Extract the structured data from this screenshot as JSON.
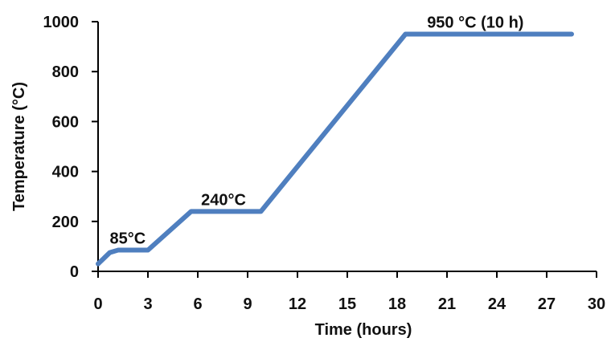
{
  "chart_data": {
    "type": "line",
    "xlabel": "Time (hours)",
    "ylabel": "Temperature (°C)",
    "xlim": [
      0,
      30
    ],
    "ylim": [
      0,
      1000
    ],
    "x_ticks": [
      0,
      3,
      6,
      9,
      12,
      15,
      18,
      21,
      24,
      27,
      30
    ],
    "y_ticks": [
      0,
      200,
      400,
      600,
      800,
      1000
    ],
    "x_tick_labels": [
      "0",
      "3",
      "6",
      "9",
      "12",
      "15",
      "18",
      "21",
      "24",
      "27",
      "30"
    ],
    "y_tick_labels": [
      "0",
      "200",
      "400",
      "600",
      "800",
      "1000"
    ],
    "grid": false,
    "legend": false,
    "series": [
      {
        "color": "#4f7fbf",
        "x": [
          0,
          0.7,
          1.2,
          2.0,
          3.0,
          5.6,
          9.8,
          18.5,
          28.5
        ],
        "y": [
          30,
          75,
          85,
          85,
          85,
          240,
          240,
          950,
          950
        ]
      }
    ],
    "annotations": [
      {
        "text": "85°C",
        "x": 0.7,
        "y": 85
      },
      {
        "text": "240°C",
        "x": 6.2,
        "y": 240
      },
      {
        "text": "950 °C (10 h)",
        "x": 19.8,
        "y": 950
      }
    ]
  }
}
